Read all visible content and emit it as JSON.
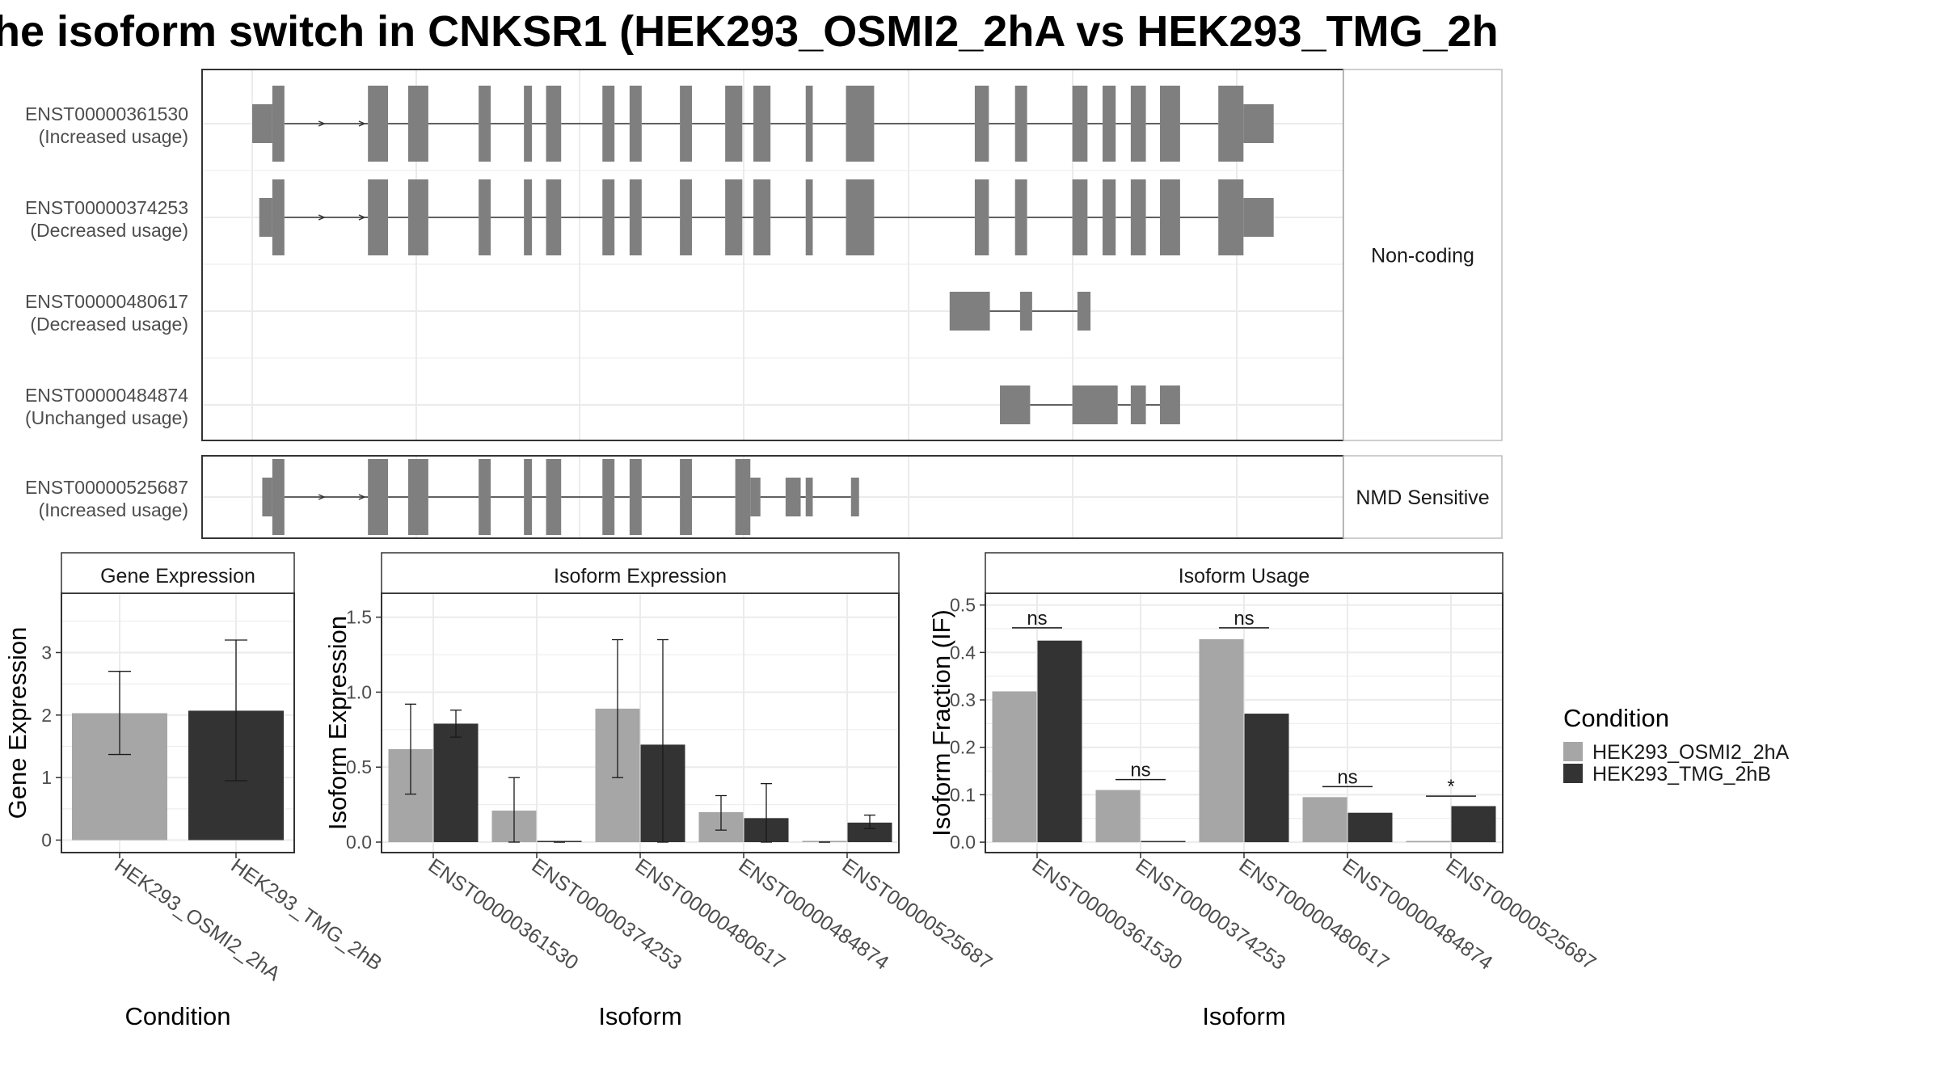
{
  "title": "he isoform switch in CNKSR1 (HEK293_OSMI2_2hA vs HEK293_TMG_2h",
  "colors": {
    "osmi": "#a6a6a6",
    "tmg": "#333333",
    "exon": "#7f7f7f",
    "intron": "#333333",
    "grid": "#ebebeb",
    "frame": "#333333",
    "strip_border": "#bdbdbd"
  },
  "structure": {
    "x_range": [
      0,
      100
    ],
    "facets": [
      {
        "label": "Non-coding",
        "transcripts": [
          {
            "id": "ENST00000361530",
            "usage": "(Increased usage)",
            "exons": [
              [
                0,
                2,
                "utr"
              ],
              [
                2,
                3.2,
                "cds"
              ],
              [
                11.5,
                13.5,
                "cds"
              ],
              [
                15.5,
                17.5,
                "cds"
              ],
              [
                22.5,
                23.7,
                "cds"
              ],
              [
                27,
                27.8,
                "cds"
              ],
              [
                29.2,
                30.7,
                "cds"
              ],
              [
                34.8,
                36,
                "cds"
              ],
              [
                37.5,
                38.7,
                "cds"
              ],
              [
                42.5,
                43.7,
                "cds"
              ],
              [
                47,
                48.7,
                "cds"
              ],
              [
                49.8,
                51.5,
                "cds"
              ],
              [
                55,
                55.7,
                "cds"
              ],
              [
                59,
                61.8,
                "cds"
              ],
              [
                71.8,
                73.2,
                "cds"
              ],
              [
                75.8,
                77,
                "cds"
              ],
              [
                81.5,
                83,
                "cds"
              ],
              [
                84.5,
                85.8,
                "cds"
              ],
              [
                87.3,
                88.8,
                "cds"
              ],
              [
                90.2,
                92.2,
                "cds"
              ],
              [
                96,
                98.5,
                "cds"
              ],
              [
                98.5,
                101.5,
                "utr"
              ]
            ],
            "arrows": [
              7,
              11
            ]
          },
          {
            "id": "ENST00000374253",
            "usage": "(Decreased usage)",
            "exons": [
              [
                0.7,
                2,
                "utr"
              ],
              [
                2,
                3.2,
                "cds"
              ],
              [
                11.5,
                13.5,
                "cds"
              ],
              [
                15.5,
                17.5,
                "cds"
              ],
              [
                22.5,
                23.7,
                "cds"
              ],
              [
                27,
                27.8,
                "cds"
              ],
              [
                29.2,
                30.7,
                "cds"
              ],
              [
                34.8,
                36,
                "cds"
              ],
              [
                37.5,
                38.7,
                "cds"
              ],
              [
                42.5,
                43.7,
                "cds"
              ],
              [
                47,
                48.7,
                "cds"
              ],
              [
                49.8,
                51.5,
                "cds"
              ],
              [
                55,
                55.7,
                "cds"
              ],
              [
                59,
                61.8,
                "cds"
              ],
              [
                71.8,
                73.2,
                "cds"
              ],
              [
                75.8,
                77,
                "cds"
              ],
              [
                81.5,
                83,
                "cds"
              ],
              [
                84.5,
                85.8,
                "cds"
              ],
              [
                87.3,
                88.8,
                "cds"
              ],
              [
                90.2,
                92.2,
                "cds"
              ],
              [
                96,
                98.5,
                "cds"
              ],
              [
                98.5,
                101.5,
                "utr"
              ]
            ],
            "arrows": [
              7,
              11
            ]
          },
          {
            "id": "ENST00000480617",
            "usage": "(Decreased usage)",
            "exons": [
              [
                69.3,
                73.3,
                "utr"
              ],
              [
                76.3,
                77.5,
                "utr"
              ],
              [
                82,
                83.3,
                "utr"
              ]
            ],
            "arrows": []
          },
          {
            "id": "ENST00000484874",
            "usage": "(Unchanged usage)",
            "exons": [
              [
                74.3,
                77.3,
                "utr"
              ],
              [
                81.5,
                86,
                "utr"
              ],
              [
                87.3,
                88.8,
                "utr"
              ],
              [
                90.2,
                92.2,
                "utr"
              ]
            ],
            "arrows": []
          }
        ]
      },
      {
        "label": "NMD Sensitive",
        "transcripts": [
          {
            "id": "ENST00000525687",
            "usage": "(Increased usage)",
            "exons": [
              [
                1,
                2,
                "utr"
              ],
              [
                2,
                3.2,
                "cds"
              ],
              [
                11.5,
                13.5,
                "cds"
              ],
              [
                15.5,
                17.5,
                "cds"
              ],
              [
                22.5,
                23.7,
                "cds"
              ],
              [
                27,
                27.8,
                "cds"
              ],
              [
                29.2,
                30.7,
                "cds"
              ],
              [
                34.8,
                36,
                "cds"
              ],
              [
                37.5,
                38.7,
                "cds"
              ],
              [
                42.5,
                43.7,
                "cds"
              ],
              [
                48,
                49.5,
                "cds"
              ],
              [
                49.5,
                50.5,
                "utr"
              ],
              [
                53,
                54.5,
                "utr"
              ],
              [
                55,
                55.7,
                "utr"
              ],
              [
                59.5,
                60.3,
                "utr"
              ]
            ],
            "arrows": [
              7,
              11
            ]
          }
        ]
      }
    ]
  },
  "chart_data": [
    {
      "type": "bar",
      "title": "Gene Expression",
      "xlabel": "Condition",
      "ylabel": "Gene Expression",
      "ylim": [
        -0.2,
        3.95
      ],
      "yticks": [
        0,
        1,
        2,
        3
      ],
      "categories": [
        "HEK293_OSMI2_2hA",
        "HEK293_TMG_2hB"
      ],
      "series": [
        {
          "name": "HEK293_OSMI2_2hA",
          "values": [
            2.03,
            null
          ],
          "err_low": [
            1.37,
            null
          ],
          "err_high": [
            2.7,
            null
          ]
        },
        {
          "name": "HEK293_TMG_2hB",
          "values": [
            null,
            2.07
          ],
          "err_low": [
            null,
            0.95
          ],
          "err_high": [
            null,
            3.2
          ]
        }
      ]
    },
    {
      "type": "bar",
      "title": "Isoform Expression",
      "xlabel": "Isoform",
      "ylabel": "Isoform Expression",
      "ylim": [
        -0.07,
        1.66
      ],
      "yticks": [
        0.0,
        0.5,
        1.0,
        1.5
      ],
      "categories": [
        "ENST00000361530",
        "ENST00000374253",
        "ENST00000480617",
        "ENST00000484874",
        "ENST00000525687"
      ],
      "series": [
        {
          "name": "HEK293_OSMI2_2hA",
          "values": [
            0.62,
            0.21,
            0.89,
            0.2,
            0.0
          ],
          "err_low": [
            0.32,
            0.0,
            0.43,
            0.08,
            0.0
          ],
          "err_high": [
            0.92,
            0.43,
            1.35,
            0.31,
            0.0
          ]
        },
        {
          "name": "HEK293_TMG_2hB",
          "values": [
            0.79,
            0.0,
            0.65,
            0.16,
            0.13
          ],
          "err_low": [
            0.7,
            0.0,
            0.0,
            0.0,
            0.09
          ],
          "err_high": [
            0.88,
            0.0,
            1.35,
            0.39,
            0.18
          ]
        }
      ]
    },
    {
      "type": "bar",
      "title": "Isoform Usage",
      "xlabel": "Isoform",
      "ylabel": "Isoform Fraction (IF)",
      "ylim": [
        -0.022,
        0.525
      ],
      "yticks": [
        0.0,
        0.1,
        0.2,
        0.3,
        0.4,
        0.5
      ],
      "categories": [
        "ENST00000361530",
        "ENST00000374253",
        "ENST00000480617",
        "ENST00000484874",
        "ENST00000525687"
      ],
      "series": [
        {
          "name": "HEK293_OSMI2_2hA",
          "values": [
            0.318,
            0.11,
            0.428,
            0.095,
            0.0
          ]
        },
        {
          "name": "HEK293_TMG_2hB",
          "values": [
            0.425,
            0.0,
            0.271,
            0.062,
            0.076
          ]
        }
      ],
      "significance": [
        {
          "label": "ns",
          "y": 0.452
        },
        {
          "label": "ns",
          "y": 0.132
        },
        {
          "label": "ns",
          "y": 0.452
        },
        {
          "label": "ns",
          "y": 0.117
        },
        {
          "label": "*",
          "y": 0.097
        }
      ]
    }
  ],
  "legend": {
    "title": "Condition",
    "position": "right",
    "items": [
      "HEK293_OSMI2_2hA",
      "HEK293_TMG_2hB"
    ]
  }
}
